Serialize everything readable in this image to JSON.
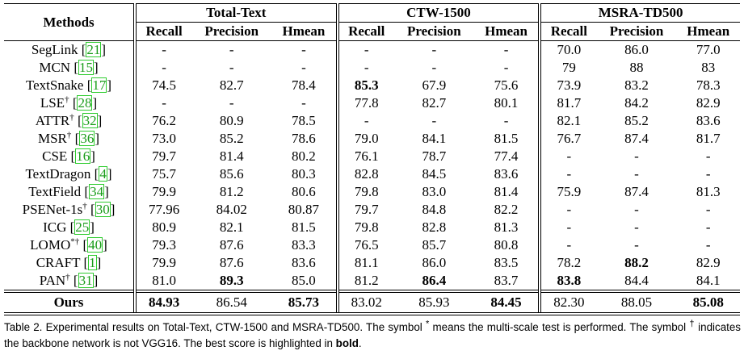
{
  "table": {
    "method_header": "Methods",
    "groups": [
      "Total-Text",
      "CTW-1500",
      "MSRA-TD500"
    ],
    "columns": [
      "Recall",
      "Precision",
      "Hmean",
      "Recall",
      "Precision",
      "Hmean",
      "Recall",
      "Precision",
      "Hmean"
    ],
    "rows": [
      {
        "method": "SegLink",
        "ref": "21",
        "cells": [
          "-",
          "-",
          "-",
          "-",
          "-",
          "-",
          "70.0",
          "86.0",
          "77.0"
        ]
      },
      {
        "method": "MCN",
        "ref": "15",
        "cells": [
          "-",
          "-",
          "-",
          "-",
          "-",
          "-",
          "79",
          "88",
          "83"
        ]
      },
      {
        "method": "TextSnake",
        "ref": "17",
        "cells": [
          "74.5",
          "82.7",
          "78.4",
          {
            "text": "85.3",
            "bold": true
          },
          "67.9",
          "75.6",
          "73.9",
          "83.2",
          "78.3"
        ]
      },
      {
        "method": "LSE",
        "sup": "†",
        "ref": "28",
        "cells": [
          "-",
          "-",
          "-",
          "77.8",
          "82.7",
          "80.1",
          "81.7",
          "84.2",
          "82.9"
        ]
      },
      {
        "method": "ATTR",
        "sup": "†",
        "ref": "32",
        "cells": [
          "76.2",
          "80.9",
          "78.5",
          "-",
          "-",
          "-",
          "82.1",
          "85.2",
          "83.6"
        ]
      },
      {
        "method": "MSR",
        "sup": "†",
        "ref": "36",
        "cells": [
          "73.0",
          "85.2",
          "78.6",
          "79.0",
          "84.1",
          "81.5",
          "76.7",
          "87.4",
          "81.7"
        ]
      },
      {
        "method": "CSE",
        "ref": "16",
        "cells": [
          "79.7",
          "81.4",
          "80.2",
          "76.1",
          "78.7",
          "77.4",
          "-",
          "-",
          "-"
        ]
      },
      {
        "method": "TextDragon",
        "ref": "4",
        "cells": [
          "75.7",
          "85.6",
          "80.3",
          "82.8",
          "84.5",
          "83.6",
          "-",
          "-",
          "-"
        ]
      },
      {
        "method": "TextField",
        "ref": "34",
        "cells": [
          "79.9",
          "81.2",
          "80.6",
          "79.8",
          "83.0",
          "81.4",
          "75.9",
          "87.4",
          "81.3"
        ]
      },
      {
        "method": "PSENet-1s",
        "sup": "†",
        "ref": "30",
        "cells": [
          "77.96",
          "84.02",
          "80.87",
          "79.7",
          "84.8",
          "82.2",
          "-",
          "-",
          "-"
        ]
      },
      {
        "method": "ICG",
        "ref": "25",
        "cells": [
          "80.9",
          "82.1",
          "81.5",
          "79.8",
          "82.8",
          "81.3",
          "-",
          "-",
          "-"
        ]
      },
      {
        "method": "LOMO",
        "sup": "*†",
        "ref": "40",
        "cells": [
          "79.3",
          "87.6",
          "83.3",
          "76.5",
          "85.7",
          "80.8",
          "-",
          "-",
          "-"
        ]
      },
      {
        "method": "CRAFT",
        "ref": "1",
        "cells": [
          "79.9",
          "87.6",
          "83.6",
          "81.1",
          "86.0",
          "83.5",
          "78.2",
          {
            "text": "88.2",
            "bold": true
          },
          "82.9"
        ]
      },
      {
        "method": "PAN",
        "sup": "†",
        "ref": "31",
        "cells": [
          "81.0",
          {
            "text": "89.3",
            "bold": true
          },
          "85.0",
          "81.2",
          {
            "text": "86.4",
            "bold": true
          },
          "83.7",
          {
            "text": "83.8",
            "bold": true
          },
          "84.4",
          "84.1"
        ]
      }
    ],
    "ours": {
      "method": "Ours",
      "cells": [
        {
          "text": "84.93",
          "bold": true
        },
        "86.54",
        {
          "text": "85.73",
          "bold": true
        },
        "83.02",
        "85.93",
        {
          "text": "84.45",
          "bold": true
        },
        "82.30",
        "88.05",
        {
          "text": "85.08",
          "bold": true
        }
      ]
    }
  },
  "caption": {
    "parts": [
      "Table 2. Experimental results on Total-Text, CTW-1500 and MSRA-TD500. The symbol ",
      "*",
      " means the multi-scale test is performed. The symbol ",
      "†",
      " indicates the backbone network is not VGG16. The best score is highlighted in ",
      "bold",
      "."
    ]
  }
}
